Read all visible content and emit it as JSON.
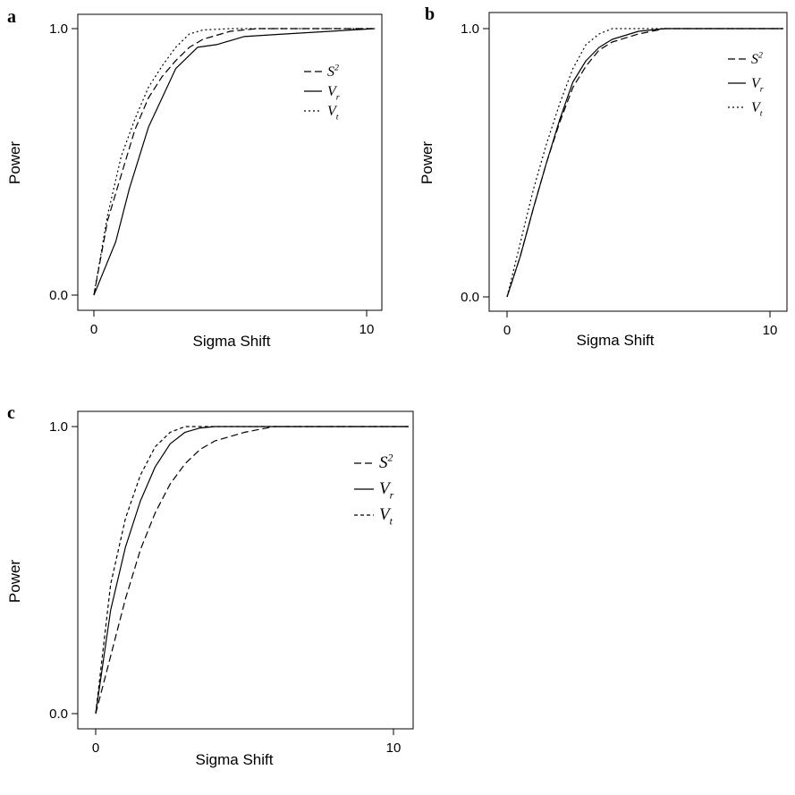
{
  "chart_data": [
    {
      "panel": "a",
      "type": "line",
      "xlabel": "Sigma Shift",
      "ylabel": "Power",
      "xticks": [
        "0",
        "10"
      ],
      "yticks": [
        "0.0",
        "1.0"
      ],
      "xlim": [
        0,
        10.5
      ],
      "ylim": [
        0,
        1
      ],
      "legend_position": "right",
      "series": [
        {
          "name": "S",
          "sup": "2",
          "style": "dashed",
          "x": [
            0,
            0.5,
            1,
            1.5,
            2,
            2.5,
            3,
            3.5,
            4,
            5,
            6,
            8,
            10.3
          ],
          "y": [
            0,
            0.28,
            0.45,
            0.62,
            0.74,
            0.82,
            0.88,
            0.93,
            0.96,
            0.99,
            1.0,
            1.0,
            1.0
          ]
        },
        {
          "name": "V",
          "sub": "r",
          "style": "solid",
          "x": [
            0,
            0.8,
            1.3,
            2,
            3,
            3.8,
            4.5,
            5.5,
            7,
            10.3
          ],
          "y": [
            0,
            0.2,
            0.4,
            0.63,
            0.85,
            0.93,
            0.94,
            0.97,
            0.98,
            1.0
          ]
        },
        {
          "name": "V",
          "sub": "t",
          "style": "dotted",
          "x": [
            0,
            0.5,
            1,
            1.5,
            2,
            2.5,
            3,
            3.5,
            4,
            5,
            6,
            10.3
          ],
          "y": [
            0,
            0.3,
            0.52,
            0.66,
            0.78,
            0.86,
            0.93,
            0.98,
            0.995,
            1.0,
            1.0,
            1.0
          ]
        }
      ]
    },
    {
      "panel": "b",
      "type": "line",
      "xlabel": "Sigma Shift",
      "ylabel": "Power",
      "xticks": [
        "0",
        "10"
      ],
      "yticks": [
        "0.0",
        "1.0"
      ],
      "xlim": [
        0,
        10.5
      ],
      "ylim": [
        0,
        1
      ],
      "legend_position": "top-right",
      "series": [
        {
          "name": "S",
          "sup": "2",
          "style": "dashed",
          "x": [
            0,
            0.5,
            1,
            1.5,
            2,
            2.5,
            3,
            3.5,
            4,
            5,
            6,
            10.5
          ],
          "y": [
            0,
            0.15,
            0.33,
            0.5,
            0.65,
            0.78,
            0.86,
            0.92,
            0.95,
            0.98,
            1.0,
            1.0
          ]
        },
        {
          "name": "V",
          "sub": "r",
          "style": "solid",
          "x": [
            0,
            0.5,
            1,
            1.5,
            2,
            2.5,
            3,
            3.5,
            4,
            5,
            6,
            10.5
          ],
          "y": [
            0,
            0.15,
            0.33,
            0.5,
            0.66,
            0.8,
            0.88,
            0.93,
            0.96,
            0.99,
            1.0,
            1.0
          ]
        },
        {
          "name": "V",
          "sub": "t",
          "style": "dotted",
          "x": [
            0,
            0.5,
            1,
            1.5,
            2,
            2.5,
            3,
            3.5,
            4,
            5,
            10.5
          ],
          "y": [
            0,
            0.2,
            0.4,
            0.57,
            0.72,
            0.85,
            0.94,
            0.98,
            1.0,
            1.0,
            1.0
          ]
        }
      ]
    },
    {
      "panel": "c",
      "type": "line",
      "xlabel": "Sigma Shift",
      "ylabel": "Power",
      "xticks": [
        "0",
        "10"
      ],
      "yticks": [
        "0.0",
        "1.0"
      ],
      "xlim": [
        0,
        10.5
      ],
      "ylim": [
        0,
        1
      ],
      "legend_position": "top-right",
      "series": [
        {
          "name": "S",
          "sup": "2",
          "style": "dashed",
          "x": [
            0,
            0.5,
            1,
            1.5,
            2,
            2.5,
            3,
            3.5,
            4,
            5,
            6,
            10.5
          ],
          "y": [
            0,
            0.2,
            0.4,
            0.57,
            0.7,
            0.8,
            0.87,
            0.92,
            0.95,
            0.98,
            1.0,
            1.0
          ]
        },
        {
          "name": "V",
          "sub": "r",
          "style": "solid",
          "x": [
            0,
            0.5,
            1,
            1.5,
            2,
            2.5,
            3,
            3.5,
            4,
            10.5
          ],
          "y": [
            0,
            0.36,
            0.58,
            0.74,
            0.86,
            0.94,
            0.98,
            0.995,
            1.0,
            1.0
          ]
        },
        {
          "name": "V",
          "sub": "t",
          "style": "short-dashed",
          "x": [
            0,
            0.5,
            1,
            1.5,
            2,
            2.5,
            3,
            3.5,
            10.5
          ],
          "y": [
            0,
            0.45,
            0.68,
            0.83,
            0.93,
            0.98,
            1.0,
            1.0,
            1.0
          ]
        }
      ]
    }
  ]
}
